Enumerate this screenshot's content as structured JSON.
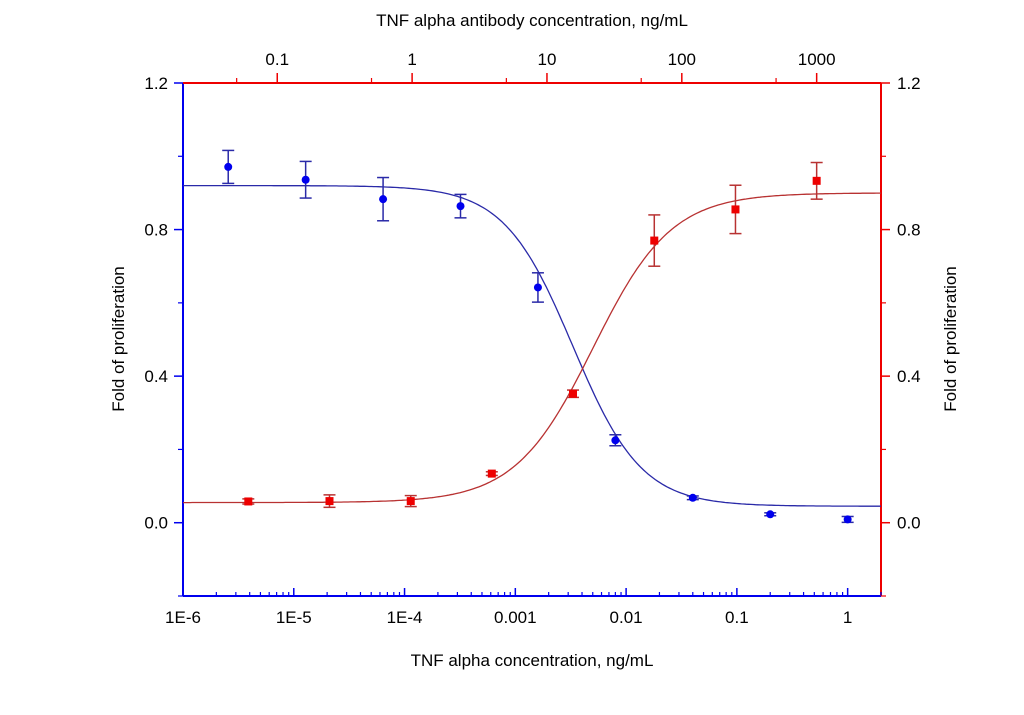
{
  "chart_data": {
    "type": "scatter",
    "colors": {
      "blue": "#0000ee",
      "red": "#ee0000",
      "blue_fit": "#2a2aa8",
      "red_fit": "#b83232"
    },
    "grid": false,
    "x_bottom": {
      "label": "TNF alpha concentration, ng/mL",
      "scale": "log",
      "lim": [
        1e-06,
        2
      ],
      "ticks": [
        1e-06,
        1e-05,
        0.0001,
        0.001,
        0.01,
        0.1,
        1
      ],
      "tick_labels": [
        "1E-6",
        "1E-5",
        "1E-4",
        "0.001",
        "0.01",
        "0.1",
        "1"
      ]
    },
    "x_top": {
      "label": "TNF alpha antibody concentration, ng/mL",
      "scale": "log",
      "lim": [
        0.02,
        3000
      ],
      "ticks": [
        0.1,
        1,
        10,
        100,
        1000
      ],
      "tick_labels": [
        "0.1",
        "1",
        "10",
        "100",
        "1000"
      ]
    },
    "y_left": {
      "label": "Fold of proliferation",
      "lim": [
        -0.2,
        1.2
      ],
      "ticks": [
        0.0,
        0.4,
        0.8,
        1.2
      ],
      "tick_labels": [
        "0.0",
        "0.4",
        "0.8",
        "1.2"
      ]
    },
    "y_right": {
      "label": "Fold of proliferation",
      "lim": [
        -0.2,
        1.2
      ],
      "ticks": [
        0.0,
        0.4,
        0.8,
        1.2
      ],
      "tick_labels": [
        "0.0",
        "0.4",
        "0.8",
        "1.2"
      ]
    },
    "series": [
      {
        "axis": "bottom",
        "color": "#0000ee",
        "marker": "circle",
        "x": [
          2.56e-06,
          1.28e-05,
          6.4e-05,
          0.00032,
          0.0016,
          0.008,
          0.04,
          0.2,
          1
        ],
        "y": [
          0.971,
          0.936,
          0.883,
          0.864,
          0.642,
          0.225,
          0.068,
          0.023,
          0.009
        ],
        "err": [
          0.045,
          0.05,
          0.059,
          0.032,
          0.04,
          0.015,
          0.005,
          0.004,
          0.008
        ],
        "fit": {
          "model": "4PL decreasing",
          "top": 0.92,
          "bottom": 0.045,
          "ic50": 0.0033,
          "hill": 1.4
        }
      },
      {
        "axis": "top",
        "color": "#ee0000",
        "marker": "square",
        "x": [
          0.061,
          0.244,
          0.977,
          3.9,
          15.6,
          62.5,
          250,
          1000
        ],
        "y": [
          0.058,
          0.059,
          0.059,
          0.134,
          0.352,
          0.77,
          0.855,
          0.933
        ],
        "err": [
          0.007,
          0.017,
          0.015,
          0.005,
          0.01,
          0.07,
          0.066,
          0.05
        ],
        "fit": {
          "model": "4PL increasing",
          "top": 0.9,
          "bottom": 0.055,
          "ec50": 22,
          "hill": 1.5
        }
      }
    ]
  }
}
